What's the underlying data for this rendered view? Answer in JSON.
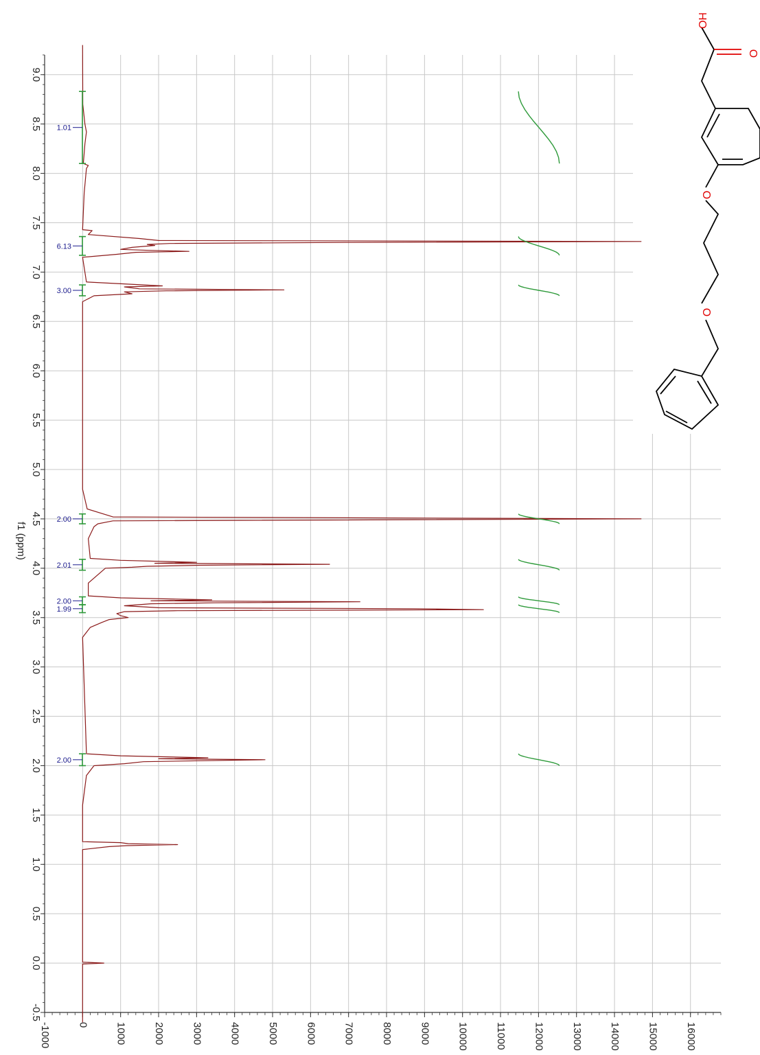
{
  "chart_data": {
    "type": "line",
    "title": "",
    "xlabel": "f1 (ppm)",
    "ylabel": "",
    "x_axis": {
      "range": [
        9.2,
        -0.5
      ],
      "reversed": true,
      "ticks": [
        9.0,
        8.5,
        8.0,
        7.5,
        7.0,
        6.5,
        6.0,
        5.5,
        5.0,
        4.5,
        4.0,
        3.5,
        3.0,
        2.5,
        2.0,
        1.5,
        1.0,
        0.5,
        0.0,
        -0.5
      ],
      "tick_labels": [
        "9.0",
        "8.5",
        "8.0",
        "7.5",
        "7.0",
        "6.5",
        "6.0",
        "5.5",
        "5.0",
        "4.5",
        "4.0",
        "3.5",
        "3.0",
        "2.5",
        "2.0",
        "1.5",
        "1.0",
        "0.5",
        "0.0",
        "-0.5"
      ]
    },
    "y_axis": {
      "range": [
        -1000,
        16800
      ],
      "ticks": [
        -1000,
        0,
        1000,
        2000,
        3000,
        4000,
        5000,
        6000,
        7000,
        8000,
        9000,
        10000,
        11000,
        12000,
        13000,
        14000,
        15000,
        16000
      ],
      "tick_labels": [
        "-1000",
        "0",
        "1000",
        "2000",
        "3000",
        "4000",
        "5000",
        "6000",
        "7000",
        "8000",
        "9000",
        "10000",
        "11000",
        "12000",
        "13000",
        "14000",
        "15000",
        "16000"
      ]
    },
    "grid": true,
    "colors": {
      "spectrum": "#8b1a1a",
      "integral": "#2e9a3a",
      "integral_label": "#1a1a8c",
      "grid": "#c8c8c8"
    },
    "spectrum": [
      [
        9.3,
        0
      ],
      [
        8.7,
        5
      ],
      [
        8.5,
        60
      ],
      [
        8.42,
        100
      ],
      [
        8.3,
        60
      ],
      [
        8.1,
        20
      ],
      [
        8.08,
        150
      ],
      [
        8.05,
        100
      ],
      [
        7.8,
        40
      ],
      [
        7.43,
        0
      ],
      [
        7.42,
        250
      ],
      [
        7.38,
        150
      ],
      [
        7.34,
        1500
      ],
      [
        7.32,
        2000
      ],
      [
        7.31,
        14700
      ],
      [
        7.3,
        6900
      ],
      [
        7.29,
        2300
      ],
      [
        7.28,
        1700
      ],
      [
        7.27,
        1900
      ],
      [
        7.26,
        1600
      ],
      [
        7.25,
        1300
      ],
      [
        7.23,
        1000
      ],
      [
        7.22,
        1800
      ],
      [
        7.21,
        2800
      ],
      [
        7.2,
        1400
      ],
      [
        7.18,
        900
      ],
      [
        7.15,
        0
      ],
      [
        6.9,
        100
      ],
      [
        6.86,
        2100
      ],
      [
        6.85,
        1100
      ],
      [
        6.83,
        1500
      ],
      [
        6.82,
        5300
      ],
      [
        6.81,
        2200
      ],
      [
        6.8,
        1100
      ],
      [
        6.78,
        1300
      ],
      [
        6.76,
        300
      ],
      [
        6.7,
        0
      ],
      [
        4.8,
        0
      ],
      [
        4.6,
        120
      ],
      [
        4.52,
        800
      ],
      [
        4.5,
        14700
      ],
      [
        4.48,
        800
      ],
      [
        4.45,
        400
      ],
      [
        4.42,
        300
      ],
      [
        4.3,
        150
      ],
      [
        4.1,
        200
      ],
      [
        4.08,
        1000
      ],
      [
        4.06,
        3000
      ],
      [
        4.05,
        1900
      ],
      [
        4.04,
        6500
      ],
      [
        4.03,
        3100
      ],
      [
        4.02,
        1700
      ],
      [
        4.01,
        1300
      ],
      [
        4.0,
        600
      ],
      [
        3.85,
        150
      ],
      [
        3.72,
        150
      ],
      [
        3.7,
        1000
      ],
      [
        3.68,
        3400
      ],
      [
        3.67,
        1800
      ],
      [
        3.66,
        7300
      ],
      [
        3.65,
        3500
      ],
      [
        3.64,
        1800
      ],
      [
        3.62,
        1100
      ],
      [
        3.6,
        2000
      ],
      [
        3.59,
        8700
      ],
      [
        3.58,
        10550
      ],
      [
        3.57,
        2500
      ],
      [
        3.56,
        1100
      ],
      [
        3.54,
        900
      ],
      [
        3.52,
        1000
      ],
      [
        3.5,
        1200
      ],
      [
        3.48,
        700
      ],
      [
        3.45,
        500
      ],
      [
        3.4,
        200
      ],
      [
        3.3,
        0
      ],
      [
        2.12,
        100
      ],
      [
        2.1,
        1000
      ],
      [
        2.08,
        3300
      ],
      [
        2.07,
        2000
      ],
      [
        2.06,
        4800
      ],
      [
        2.05,
        3100
      ],
      [
        2.04,
        1600
      ],
      [
        2.02,
        1100
      ],
      [
        2.0,
        300
      ],
      [
        1.9,
        100
      ],
      [
        1.6,
        0
      ],
      [
        1.23,
        0
      ],
      [
        1.22,
        1000
      ],
      [
        1.21,
        1200
      ],
      [
        1.2,
        2500
      ],
      [
        1.19,
        1150
      ],
      [
        1.18,
        700
      ],
      [
        1.15,
        0
      ],
      [
        0.01,
        0
      ],
      [
        0.0,
        560
      ],
      [
        -0.01,
        0
      ],
      [
        -0.6,
        0
      ]
    ],
    "integrals": [
      {
        "label": "1.01",
        "from": 8.83,
        "to": 8.1
      },
      {
        "label": "6.13",
        "from": 7.36,
        "to": 7.17
      },
      {
        "label": "3.00",
        "from": 6.87,
        "to": 6.76
      },
      {
        "label": "2.00",
        "from": 4.55,
        "to": 4.45
      },
      {
        "label": "2.01",
        "from": 4.09,
        "to": 3.98
      },
      {
        "label": "2.00",
        "from": 3.71,
        "to": 3.63
      },
      {
        "label": "1.99",
        "from": 3.63,
        "to": 3.55
      },
      {
        "label": "2.00",
        "from": 2.12,
        "to": 2.0
      }
    ]
  },
  "structure": {
    "atoms": [
      {
        "symbol": "HO",
        "color": "#e00000"
      },
      {
        "symbol": "O",
        "color": "#e00000"
      },
      {
        "symbol": "O",
        "color": "#e00000"
      },
      {
        "symbol": "O",
        "color": "#e00000"
      }
    ]
  }
}
